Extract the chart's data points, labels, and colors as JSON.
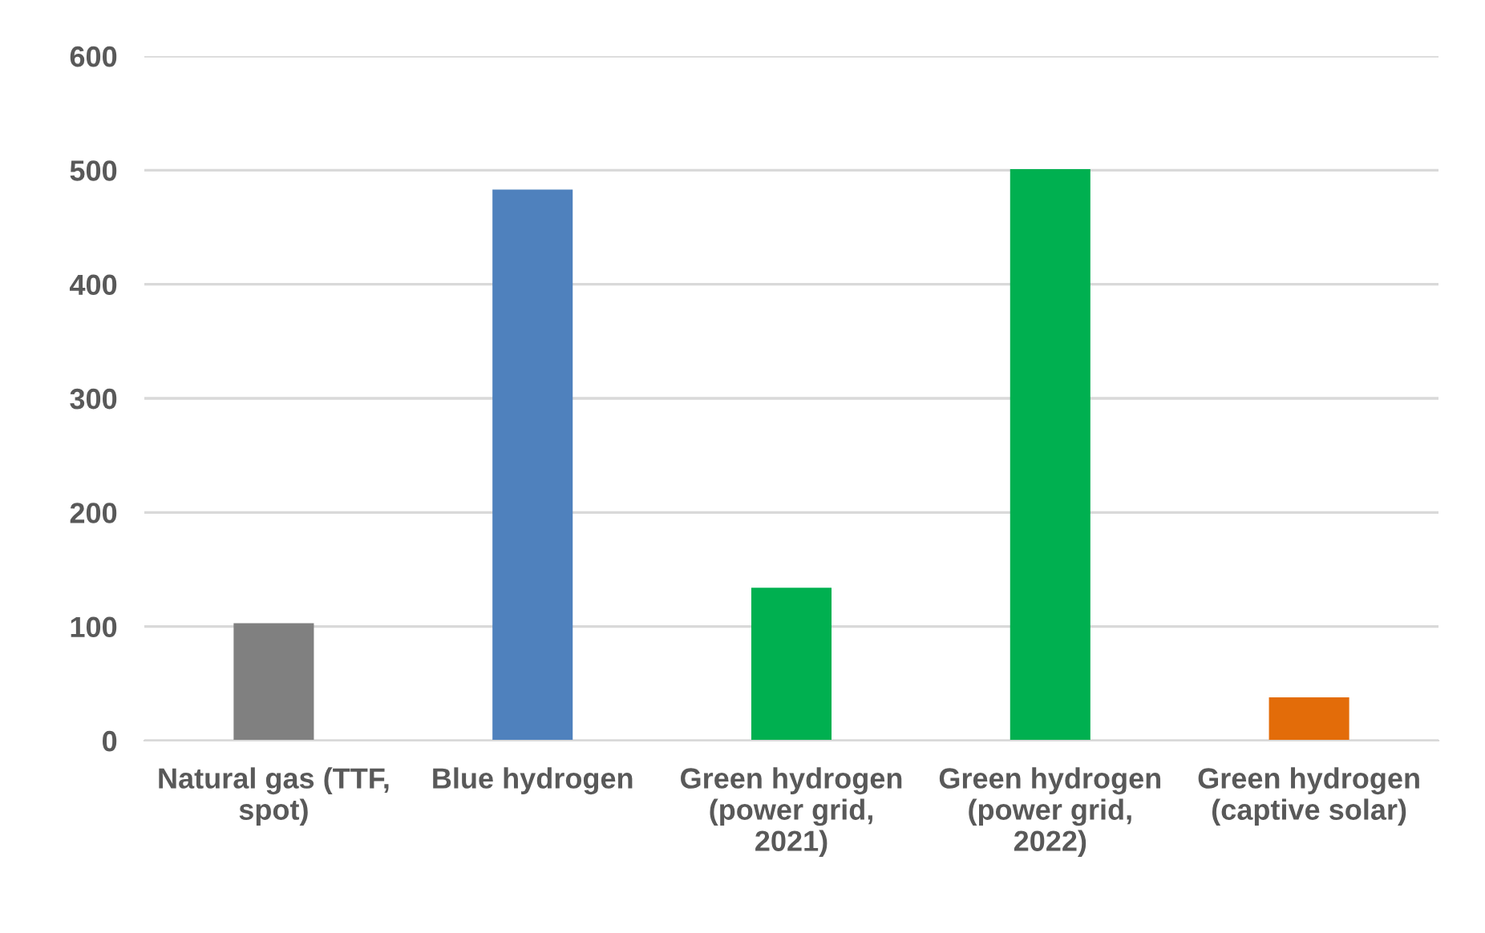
{
  "chart_data": {
    "type": "bar",
    "categories": [
      "Natural gas (TTF,\nspot)",
      "Blue hydrogen",
      "Green hydrogen\n(power grid,\n2021)",
      "Green hydrogen\n(power grid,\n2022)",
      "Green hydrogen\n(captive solar)"
    ],
    "values": [
      103,
      483,
      134,
      501,
      38
    ],
    "colors": [
      "#808080",
      "#4f81bd",
      "#00b050",
      "#00b050",
      "#e36c09"
    ],
    "ylim": [
      0,
      600
    ],
    "yticks": [
      0,
      100,
      200,
      300,
      400,
      500,
      600
    ],
    "grid": "y"
  }
}
